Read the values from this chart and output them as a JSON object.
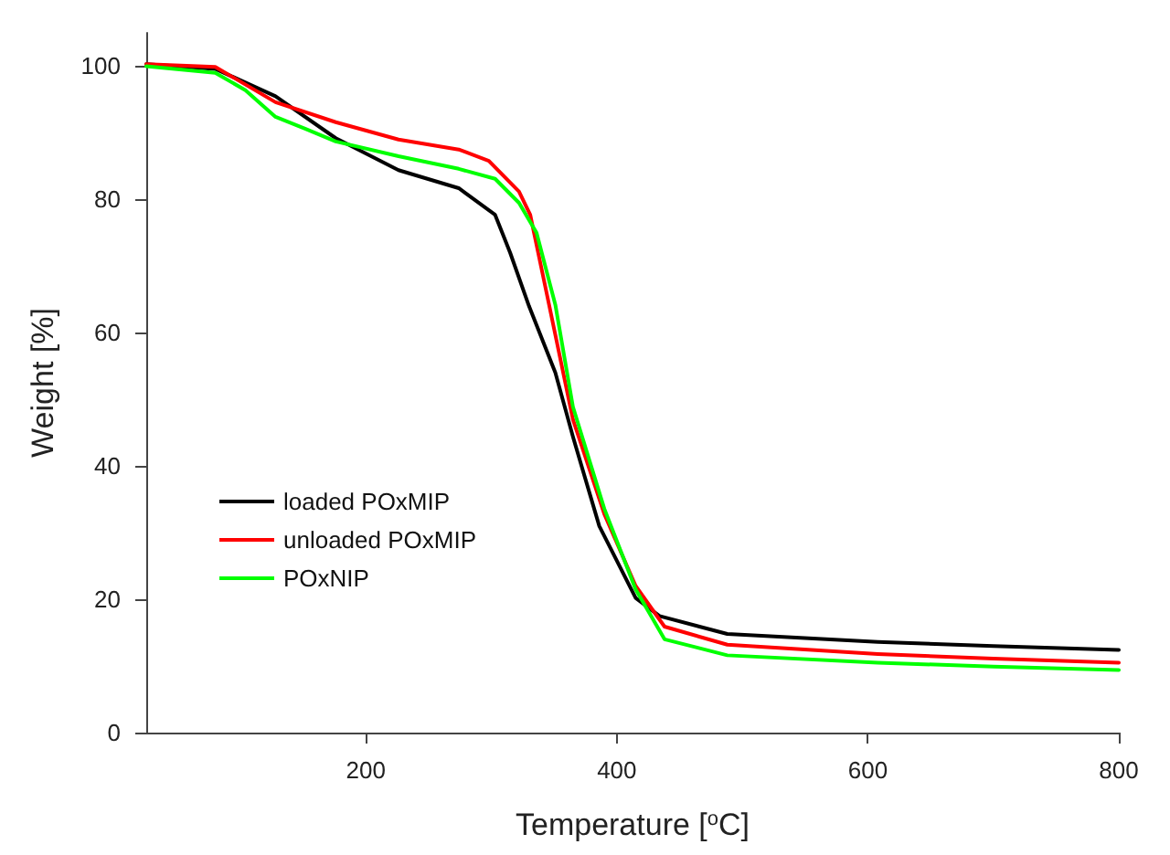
{
  "chart_data": {
    "type": "line",
    "xlabel": "Temperature [$^{o}$C]",
    "ylabel": "Weight [%]",
    "xlim": [
      25,
      800
    ],
    "xticks": [
      200,
      400,
      600,
      800
    ],
    "ylim": [
      0,
      105
    ],
    "yticks": [
      0,
      20,
      40,
      60,
      80,
      100
    ],
    "grid": false,
    "legend": "bottom left",
    "marker": "none",
    "line_style": "solid",
    "series": [
      {
        "name": "loaded POxMIP",
        "color": "#000000",
        "x": [
          25,
          80,
          128,
          176,
          226,
          274,
          303,
          315,
          330,
          351,
          365,
          386,
          415,
          434,
          488,
          608,
          700,
          800
        ],
        "values": [
          100.3,
          99.6,
          95.5,
          89.2,
          84.4,
          81.7,
          77.7,
          72,
          64,
          54,
          44.4,
          31,
          20.2,
          17.5,
          14.8,
          13.6,
          13,
          12.4
        ]
      },
      {
        "name": "unloaded POxMIP",
        "color": "#ff0000",
        "x": [
          25,
          80,
          128,
          176,
          226,
          274,
          298,
          322,
          331,
          346,
          365,
          390,
          415,
          438,
          488,
          608,
          700,
          800
        ],
        "values": [
          100.3,
          99.9,
          94.6,
          91.6,
          89,
          87.5,
          85.8,
          81.2,
          77.7,
          64.2,
          47,
          32.8,
          22,
          15.9,
          13.2,
          11.8,
          11.1,
          10.5
        ]
      },
      {
        "name": "POxNIP",
        "color": "#00ff00",
        "x": [
          25,
          80,
          104,
          128,
          152,
          176,
          226,
          274,
          303,
          322,
          336,
          351,
          365,
          390,
          415,
          438,
          488,
          608,
          700,
          800
        ],
        "values": [
          100,
          99,
          96.4,
          92.4,
          90.6,
          88.7,
          86.5,
          84.6,
          83.1,
          79.5,
          75,
          64.2,
          48.9,
          33.6,
          21.5,
          14,
          11.6,
          10.5,
          9.9,
          9.4
        ]
      }
    ]
  }
}
